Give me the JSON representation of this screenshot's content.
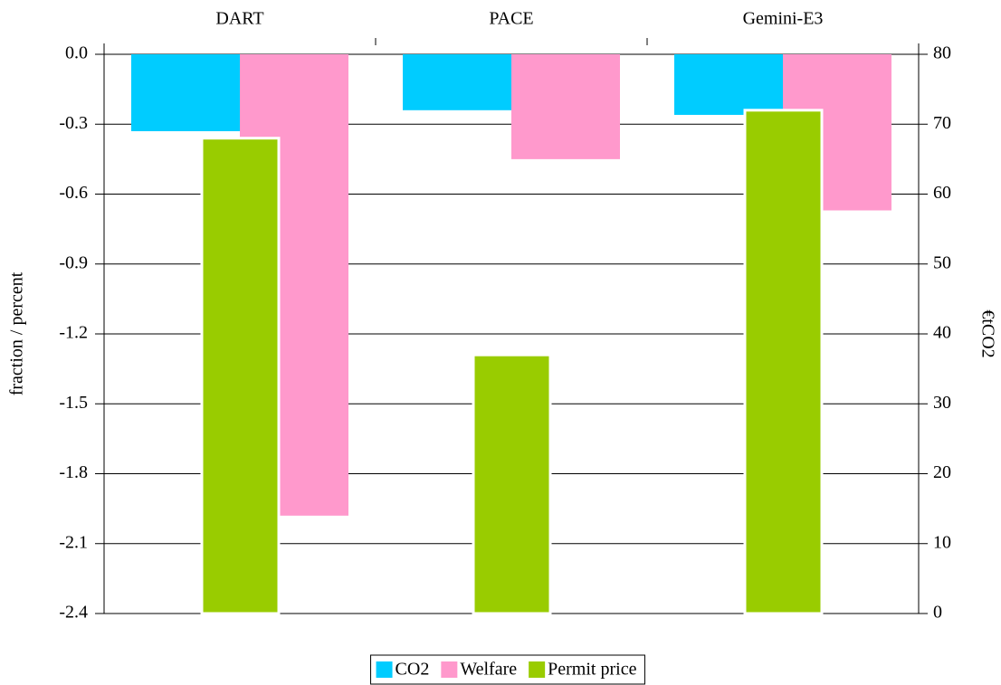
{
  "chart_data": {
    "type": "bar",
    "categories": [
      "DART",
      "PACE",
      "Gemini-E3"
    ],
    "ylabel": "fraction / percent",
    "y2label": "€tCO2",
    "ylim": [
      -2.4,
      0
    ],
    "yticks": [
      {
        "value": 0,
        "label": "0.0"
      },
      -0.3,
      -0.6,
      -0.9,
      -1.2,
      -1.5,
      -1.8,
      -2.1,
      -2.4
    ],
    "y2lim": [
      0,
      80
    ],
    "y2ticks": [
      0,
      10,
      20,
      30,
      40,
      50,
      60,
      70,
      80
    ],
    "grid": true,
    "legend": "bottom",
    "series": [
      {
        "name": "CO2",
        "color": "#00ccff",
        "values": [
          -0.33,
          -0.24,
          -0.26
        ]
      },
      {
        "name": "Welfare",
        "color": "#ff99cc",
        "values": [
          -1.98,
          -0.45,
          -0.67
        ]
      },
      {
        "name": "Permit price",
        "color": "#99cc00",
        "axis": "y2",
        "values": [
          68,
          37,
          72
        ]
      }
    ]
  }
}
